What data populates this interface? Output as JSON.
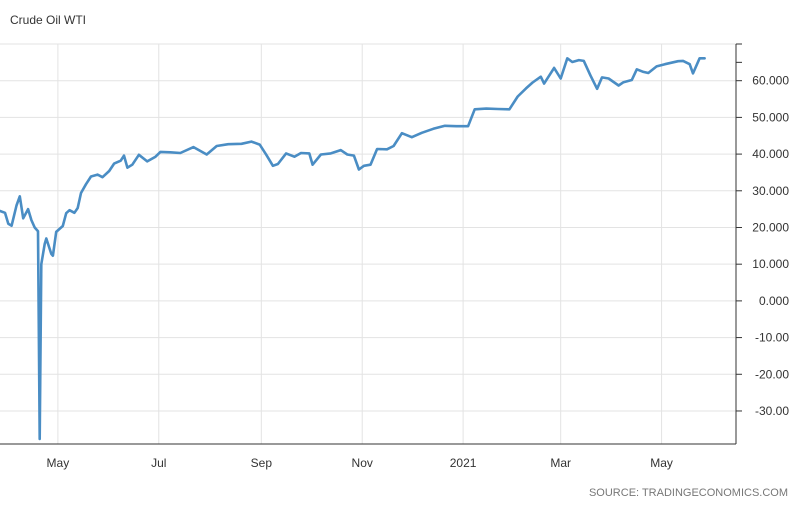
{
  "chart_data": {
    "type": "line",
    "title": "Crude Oil WTI",
    "source": "SOURCE: TRADINGECONOMICS.COM",
    "colors": {
      "line": "#4a8dc4",
      "grid": "#e3e3e3",
      "axis": "#333333",
      "text": "#333333",
      "source": "#777777"
    },
    "x_ticks": [
      {
        "label": "May",
        "date": "2020-05-01"
      },
      {
        "label": "Jul",
        "date": "2020-07-01"
      },
      {
        "label": "Sep",
        "date": "2020-09-01"
      },
      {
        "label": "Nov",
        "date": "2020-11-01"
      },
      {
        "label": "2021",
        "date": "2021-01-01"
      },
      {
        "label": "Mar",
        "date": "2021-03-01"
      },
      {
        "label": "May",
        "date": "2021-05-01"
      }
    ],
    "y_ticks": [
      {
        "label": "60.000",
        "value": 60
      },
      {
        "label": "50.000",
        "value": 50
      },
      {
        "label": "40.000",
        "value": 40
      },
      {
        "label": "30.000",
        "value": 30
      },
      {
        "label": "20.000",
        "value": 20
      },
      {
        "label": "10.000",
        "value": 10
      },
      {
        "label": "0.000",
        "value": 0
      },
      {
        "label": "-10.00",
        "value": -10
      },
      {
        "label": "-20.00",
        "value": -20
      },
      {
        "label": "-30.00",
        "value": -30
      }
    ],
    "ylim": [
      -39,
      70
    ],
    "xlim": [
      "2020-03-27",
      "2021-06-15"
    ],
    "grid": true,
    "series": [
      {
        "points": [
          [
            "2020-03-27",
            24.5
          ],
          [
            "2020-03-30",
            24
          ],
          [
            "2020-04-01",
            21
          ],
          [
            "2020-04-03",
            20.5
          ],
          [
            "2020-04-06",
            26
          ],
          [
            "2020-04-08",
            28.5
          ],
          [
            "2020-04-10",
            22.5
          ],
          [
            "2020-04-13",
            25
          ],
          [
            "2020-04-15",
            22
          ],
          [
            "2020-04-17",
            20
          ],
          [
            "2020-04-19",
            19
          ],
          [
            "2020-04-20",
            -37.6
          ],
          [
            "2020-04-21",
            10
          ],
          [
            "2020-04-23",
            15.5
          ],
          [
            "2020-04-24",
            17
          ],
          [
            "2020-04-27",
            12.8
          ],
          [
            "2020-04-28",
            12.3
          ],
          [
            "2020-04-30",
            18.8
          ],
          [
            "2020-05-04",
            20.4
          ],
          [
            "2020-05-06",
            23.9
          ],
          [
            "2020-05-08",
            24.7
          ],
          [
            "2020-05-11",
            24
          ],
          [
            "2020-05-13",
            25.3
          ],
          [
            "2020-05-15",
            29.4
          ],
          [
            "2020-05-18",
            31.8
          ],
          [
            "2020-05-21",
            33.9
          ],
          [
            "2020-05-25",
            34.4
          ],
          [
            "2020-05-28",
            33.7
          ],
          [
            "2020-06-01",
            35.4
          ],
          [
            "2020-06-04",
            37.4
          ],
          [
            "2020-06-08",
            38.2
          ],
          [
            "2020-06-10",
            39.6
          ],
          [
            "2020-06-12",
            36.3
          ],
          [
            "2020-06-15",
            37.1
          ],
          [
            "2020-06-19",
            39.8
          ],
          [
            "2020-06-24",
            38
          ],
          [
            "2020-06-29",
            39.3
          ],
          [
            "2020-07-02",
            40.6
          ],
          [
            "2020-07-08",
            40.5
          ],
          [
            "2020-07-14",
            40.3
          ],
          [
            "2020-07-22",
            41.9
          ],
          [
            "2020-07-30",
            39.9
          ],
          [
            "2020-08-05",
            42.2
          ],
          [
            "2020-08-12",
            42.7
          ],
          [
            "2020-08-20",
            42.8
          ],
          [
            "2020-08-26",
            43.4
          ],
          [
            "2020-08-31",
            42.6
          ],
          [
            "2020-09-04",
            39.8
          ],
          [
            "2020-09-08",
            36.8
          ],
          [
            "2020-09-11",
            37.3
          ],
          [
            "2020-09-16",
            40.2
          ],
          [
            "2020-09-21",
            39.3
          ],
          [
            "2020-09-25",
            40.3
          ],
          [
            "2020-09-30",
            40.2
          ],
          [
            "2020-10-02",
            37.1
          ],
          [
            "2020-10-07",
            39.9
          ],
          [
            "2020-10-13",
            40.2
          ],
          [
            "2020-10-19",
            41.1
          ],
          [
            "2020-10-23",
            39.9
          ],
          [
            "2020-10-27",
            39.6
          ],
          [
            "2020-10-30",
            35.8
          ],
          [
            "2020-11-02",
            36.8
          ],
          [
            "2020-11-06",
            37.1
          ],
          [
            "2020-11-10",
            41.4
          ],
          [
            "2020-11-16",
            41.3
          ],
          [
            "2020-11-20",
            42.2
          ],
          [
            "2020-11-25",
            45.7
          ],
          [
            "2020-12-01",
            44.6
          ],
          [
            "2020-12-07",
            45.8
          ],
          [
            "2020-12-14",
            46.9
          ],
          [
            "2020-12-21",
            47.7
          ],
          [
            "2020-12-28",
            47.6
          ],
          [
            "2021-01-04",
            47.6
          ],
          [
            "2021-01-08",
            52.2
          ],
          [
            "2021-01-15",
            52.4
          ],
          [
            "2021-01-22",
            52.3
          ],
          [
            "2021-01-29",
            52.2
          ],
          [
            "2021-02-03",
            55.7
          ],
          [
            "2021-02-08",
            57.9
          ],
          [
            "2021-02-12",
            59.5
          ],
          [
            "2021-02-17",
            61.1
          ],
          [
            "2021-02-19",
            59.2
          ],
          [
            "2021-02-25",
            63.5
          ],
          [
            "2021-03-01",
            60.6
          ],
          [
            "2021-03-05",
            66.1
          ],
          [
            "2021-03-08",
            65.1
          ],
          [
            "2021-03-12",
            65.6
          ],
          [
            "2021-03-15",
            65.4
          ],
          [
            "2021-03-19",
            61.4
          ],
          [
            "2021-03-23",
            57.8
          ],
          [
            "2021-03-26",
            60.9
          ],
          [
            "2021-03-30",
            60.6
          ],
          [
            "2021-04-05",
            58.7
          ],
          [
            "2021-04-08",
            59.6
          ],
          [
            "2021-04-13",
            60.2
          ],
          [
            "2021-04-16",
            63.1
          ],
          [
            "2021-04-20",
            62.4
          ],
          [
            "2021-04-23",
            62.1
          ],
          [
            "2021-04-28",
            63.9
          ],
          [
            "2021-05-03",
            64.5
          ],
          [
            "2021-05-07",
            64.9
          ],
          [
            "2021-05-11",
            65.3
          ],
          [
            "2021-05-14",
            65.4
          ],
          [
            "2021-05-18",
            64.5
          ],
          [
            "2021-05-20",
            62.0
          ],
          [
            "2021-05-24",
            66.1
          ],
          [
            "2021-05-27",
            66.1
          ]
        ]
      }
    ]
  }
}
